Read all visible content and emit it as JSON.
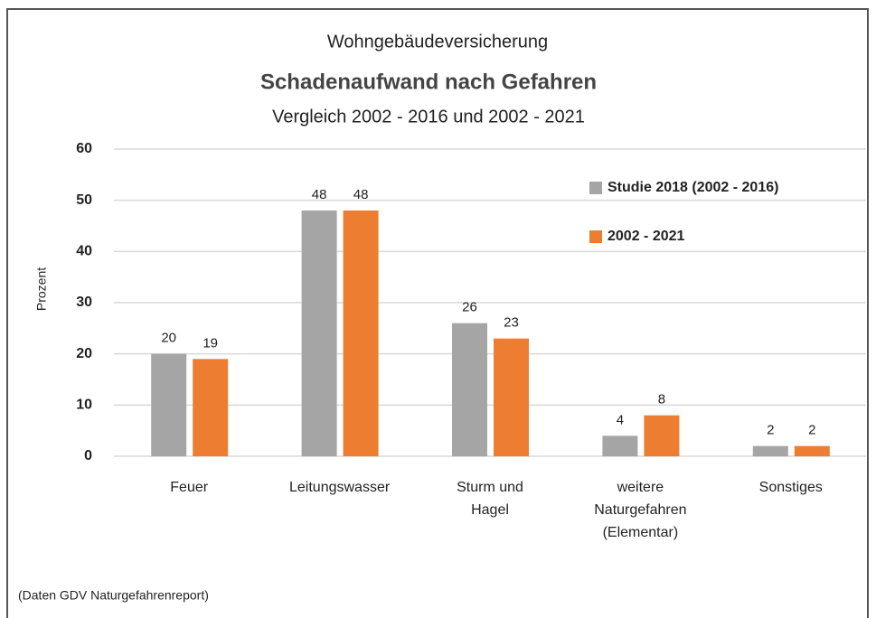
{
  "chart_data": {
    "type": "bar",
    "title": "Wohngebäudeversicherung",
    "subtitle": "Schadenaufwand nach Gefahren",
    "subtitle2": "Vergleich 2002 - 2016 und 2002 - 2021",
    "y_label": "Prozent",
    "footnote": "(Daten GDV Naturgefahrenreport)",
    "categories": [
      "Feuer",
      "Leitungswasser",
      "Sturm und\nHagel",
      "weitere\nNaturgefahren\n(Elementar)",
      "Sonstiges"
    ],
    "series": [
      {
        "name": "Studie 2018 (2002 - 2016)",
        "color": "#a5a5a5",
        "values": [
          20,
          48,
          26,
          4,
          2
        ]
      },
      {
        "name": "2002 - 2021",
        "color": "#ed7d31",
        "values": [
          19,
          48,
          23,
          8,
          2
        ]
      }
    ],
    "ylim": [
      0,
      60
    ],
    "yticks": [
      0,
      10,
      20,
      30,
      40,
      50,
      60
    ],
    "grid": true,
    "legend": "upper right"
  }
}
